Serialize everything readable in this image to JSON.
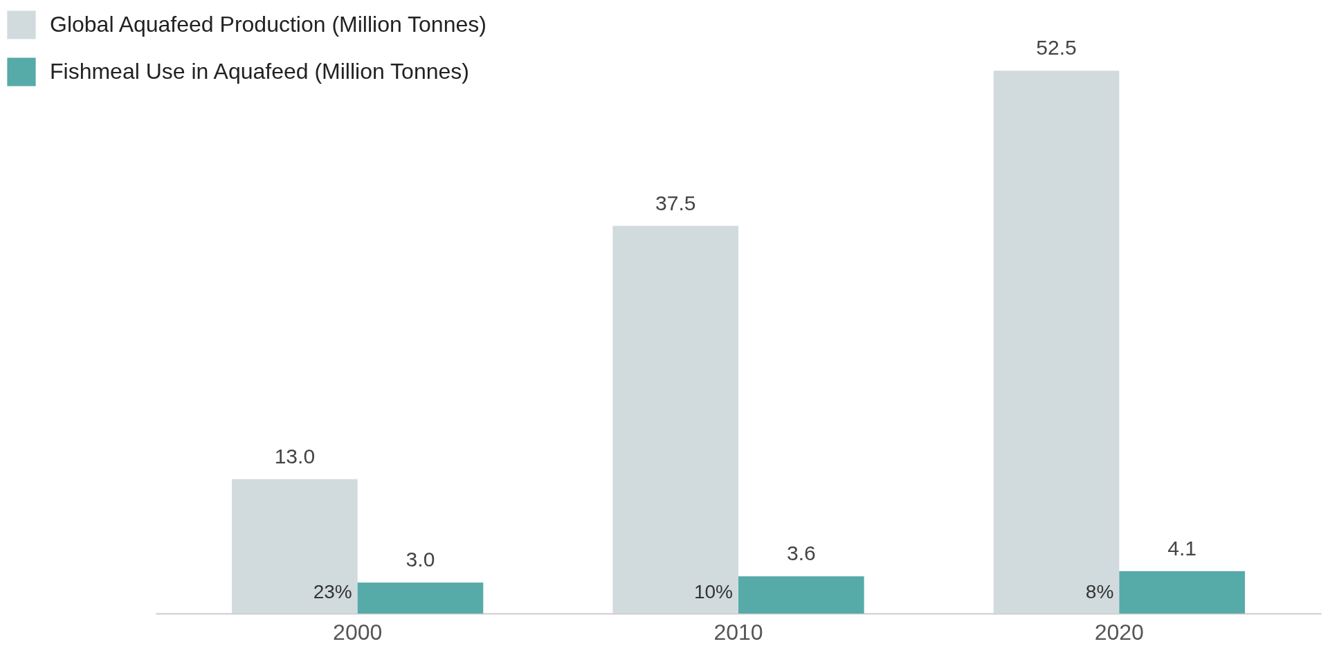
{
  "chart_data": {
    "type": "bar",
    "categories": [
      "2000",
      "2010",
      "2020"
    ],
    "series": [
      {
        "name": "Global Aquafeed Production (Million Tonnes)",
        "color": "#d1dbdd",
        "values": [
          13.0,
          37.5,
          52.5
        ],
        "value_labels": [
          "13.0",
          "37.5",
          "52.5"
        ]
      },
      {
        "name": "Fishmeal Use in Aquafeed (Million Tonnes)",
        "color": "#56aaa8",
        "values": [
          3.0,
          3.6,
          4.1
        ],
        "value_labels": [
          "3.0",
          "3.6",
          "4.1"
        ]
      }
    ],
    "annotations": [
      {
        "text": "23%",
        "x": "2000",
        "y": 2.0
      },
      {
        "text": "10%",
        "x": "2010",
        "y": 2.0
      },
      {
        "text": "8%",
        "x": "2020",
        "y": 2.0
      }
    ],
    "legend": "top left",
    "grid": false
  }
}
